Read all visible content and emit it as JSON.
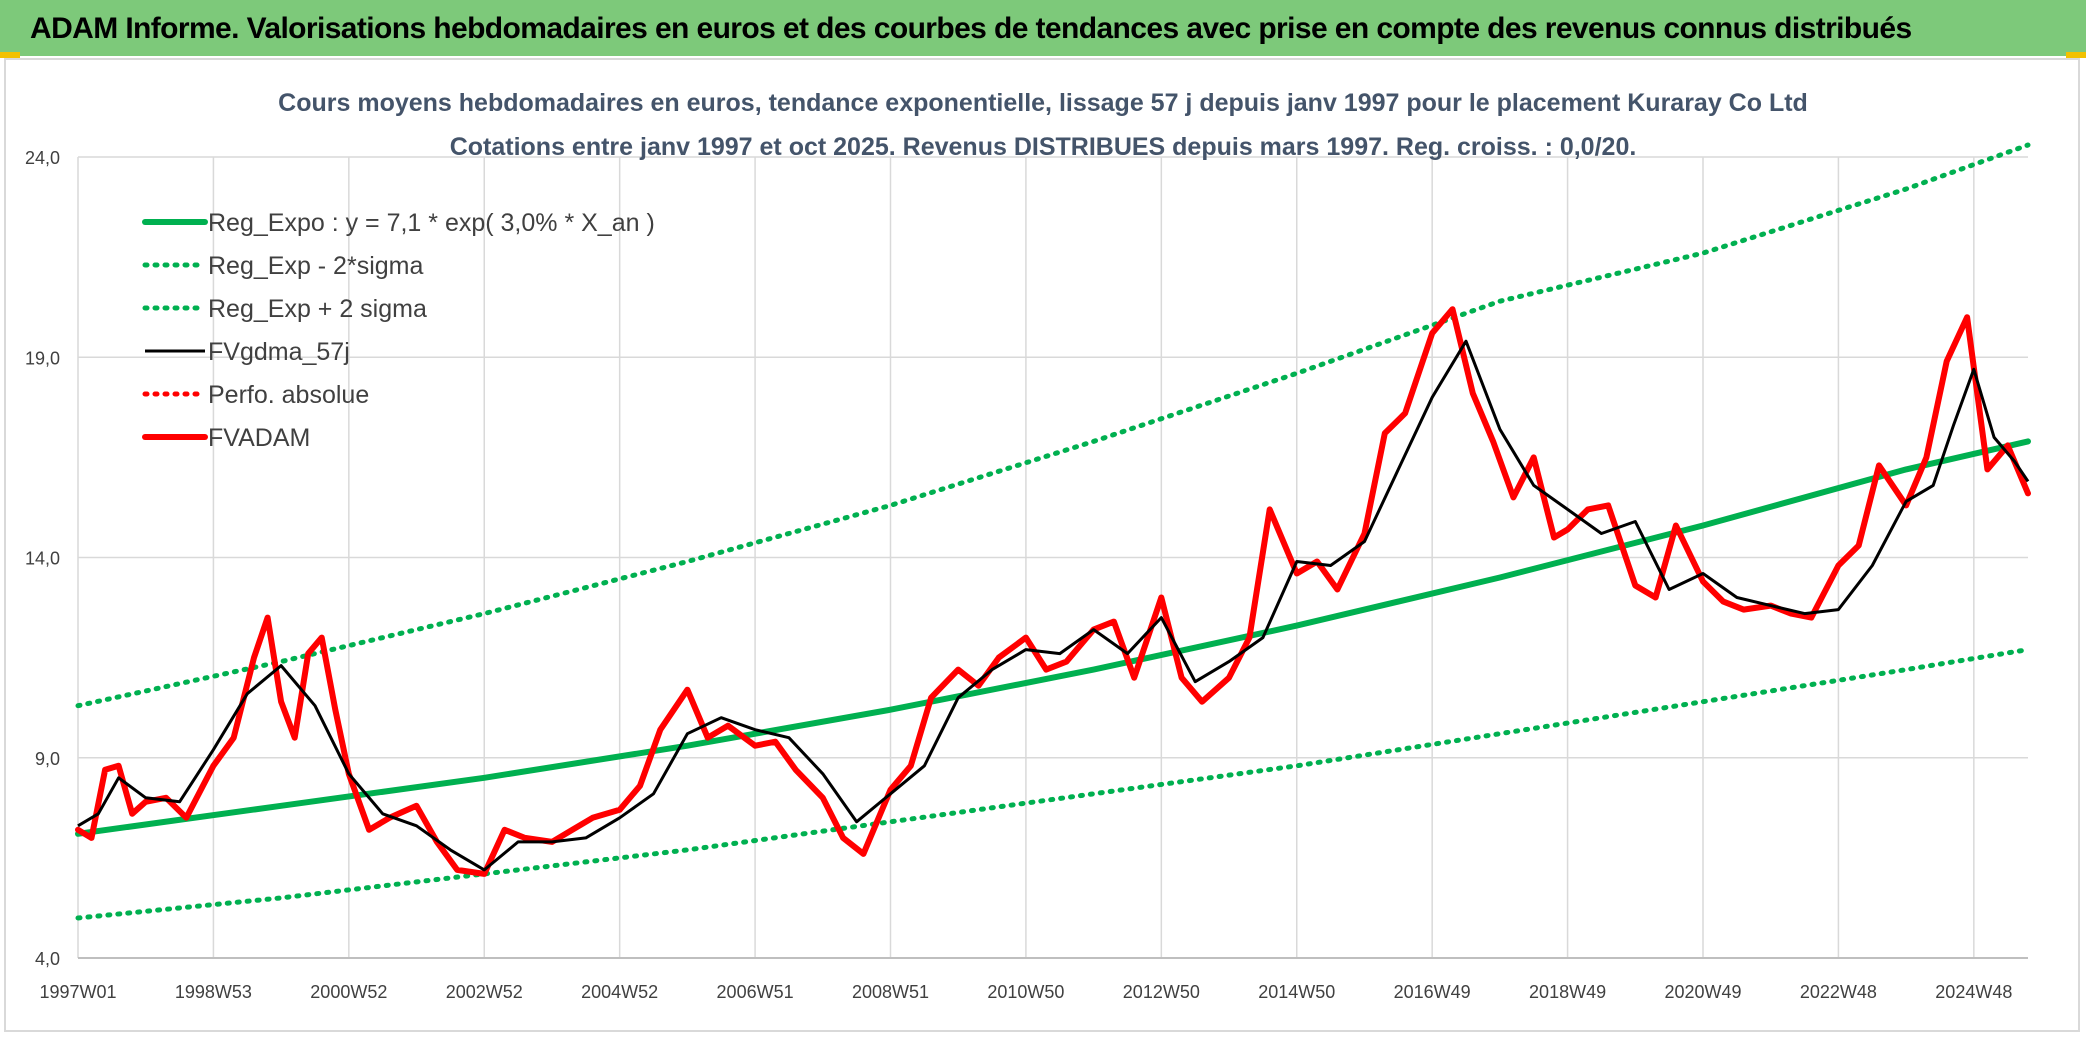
{
  "header": {
    "title": "ADAM Informe. Valorisations hebdomadaires en euros et des courbes de tendances avec prise en compte des revenus connus distribués"
  },
  "colors": {
    "banner": "#7dc97a",
    "trend": "#00b050",
    "fvgdma": "#000000",
    "fvadam": "#ff0000",
    "perfo": "#ff0000",
    "grid": "#d9d9d9"
  },
  "chart_data": {
    "type": "line",
    "title_lines": [
      "Cours moyens hebdomadaires en euros, tendance exponentielle, lissage 57 j depuis janv 1997 pour le placement Kuraray Co Ltd",
      "Cotations entre janv 1997 et oct 2025. Revenus DISTRIBUES depuis mars 1997. Reg. croiss. : 0,0/20."
    ],
    "x_range": [
      1997.0,
      2025.8
    ],
    "ylim": [
      4.0,
      24.0
    ],
    "y_ticks": [
      "4,0",
      "9,0",
      "14,0",
      "19,0",
      "24,0"
    ],
    "y_tick_values": [
      4,
      9,
      14,
      19,
      24
    ],
    "x_ticks": [
      "1997W01",
      "1998W53",
      "2000W52",
      "2002W52",
      "2004W52",
      "2006W51",
      "2008W51",
      "2010W50",
      "2012W50",
      "2014W50",
      "2016W49",
      "2018W49",
      "2020W49",
      "2022W48",
      "2024W48"
    ],
    "x_tick_values": [
      1997.0,
      1999.0,
      2001.0,
      2003.0,
      2005.0,
      2007.0,
      2009.0,
      2011.0,
      2013.0,
      2015.0,
      2017.0,
      2019.0,
      2021.0,
      2023.0,
      2025.0
    ],
    "grid": true,
    "legend_position": "top-left",
    "series": [
      {
        "name": "Reg_Expo : y = 7,1 * exp( 3,0% *  X_an )",
        "style": "solid-thick",
        "color": "#00b050",
        "x": [
          1997.0,
          2000.0,
          2003.0,
          2006.0,
          2009.0,
          2012.0,
          2015.0,
          2018.0,
          2021.0,
          2024.0,
          2025.8
        ],
        "y": [
          7.1,
          7.8,
          8.5,
          9.3,
          10.2,
          11.2,
          12.3,
          13.5,
          14.8,
          16.2,
          16.9
        ]
      },
      {
        "name": "Reg_Exp - 2*sigma",
        "style": "dotted",
        "color": "#00b050",
        "x": [
          1997.0,
          2000.0,
          2003.0,
          2006.0,
          2009.0,
          2012.0,
          2015.0,
          2018.0,
          2021.0,
          2024.0,
          2025.8
        ],
        "y": [
          5.0,
          5.5,
          6.1,
          6.7,
          7.4,
          8.1,
          8.8,
          9.6,
          10.4,
          11.2,
          11.7
        ]
      },
      {
        "name": "Reg_Exp + 2 sigma",
        "style": "dotted",
        "color": "#00b050",
        "x": [
          1997.0,
          2000.0,
          2003.0,
          2006.0,
          2009.0,
          2012.0,
          2015.0,
          2018.0,
          2021.0,
          2024.0,
          2025.8
        ],
        "y": [
          10.3,
          11.4,
          12.6,
          13.9,
          15.3,
          16.9,
          18.6,
          20.4,
          21.6,
          23.2,
          24.3
        ]
      },
      {
        "name": "FVgdma_57j",
        "style": "solid",
        "color": "#000000",
        "x": [
          1997.0,
          1997.3,
          1997.6,
          1998.0,
          1998.5,
          1999.0,
          1999.5,
          2000.0,
          2000.5,
          2001.0,
          2001.5,
          2002.0,
          2002.5,
          2003.0,
          2003.5,
          2004.0,
          2004.5,
          2005.0,
          2005.5,
          2006.0,
          2006.5,
          2007.0,
          2007.5,
          2008.0,
          2008.5,
          2009.0,
          2009.5,
          2010.0,
          2010.5,
          2011.0,
          2011.5,
          2012.0,
          2012.5,
          2013.0,
          2013.5,
          2014.0,
          2014.5,
          2015.0,
          2015.5,
          2016.0,
          2016.5,
          2017.0,
          2017.5,
          2018.0,
          2018.5,
          2019.0,
          2019.5,
          2020.0,
          2020.5,
          2021.0,
          2021.5,
          2022.0,
          2022.5,
          2023.0,
          2023.5,
          2024.0,
          2024.4,
          2024.7,
          2025.0,
          2025.3,
          2025.6,
          2025.8
        ],
        "y": [
          7.3,
          7.6,
          8.5,
          8.0,
          7.9,
          9.2,
          10.6,
          11.3,
          10.3,
          8.6,
          7.6,
          7.3,
          6.7,
          6.2,
          6.9,
          6.9,
          7.0,
          7.5,
          8.1,
          9.6,
          10.0,
          9.7,
          9.5,
          8.6,
          7.4,
          8.1,
          8.8,
          10.5,
          11.2,
          11.7,
          11.6,
          12.2,
          11.6,
          12.5,
          10.9,
          11.4,
          12.0,
          13.9,
          13.8,
          14.4,
          16.2,
          18.0,
          19.4,
          17.2,
          15.8,
          15.2,
          14.6,
          14.9,
          13.2,
          13.6,
          13.0,
          12.8,
          12.6,
          12.7,
          13.8,
          15.4,
          15.8,
          17.3,
          18.7,
          17.0,
          16.4,
          15.9
        ]
      },
      {
        "name": "Perfo. absolue",
        "style": "dotted",
        "color": "#ff0000",
        "x": [],
        "y": []
      },
      {
        "name": "FVADAM",
        "style": "solid-thick",
        "color": "#ff0000",
        "x": [
          1997.0,
          1997.2,
          1997.4,
          1997.6,
          1997.8,
          1998.0,
          1998.3,
          1998.6,
          1999.0,
          1999.3,
          1999.6,
          1999.8,
          2000.0,
          2000.2,
          2000.4,
          2000.6,
          2000.8,
          2001.0,
          2001.3,
          2001.6,
          2002.0,
          2002.3,
          2002.6,
          2003.0,
          2003.3,
          2003.6,
          2004.0,
          2004.3,
          2004.6,
          2005.0,
          2005.3,
          2005.6,
          2006.0,
          2006.3,
          2006.6,
          2007.0,
          2007.3,
          2007.6,
          2008.0,
          2008.3,
          2008.6,
          2009.0,
          2009.3,
          2009.6,
          2010.0,
          2010.3,
          2010.6,
          2011.0,
          2011.3,
          2011.6,
          2012.0,
          2012.3,
          2012.6,
          2013.0,
          2013.3,
          2013.6,
          2014.0,
          2014.3,
          2014.6,
          2015.0,
          2015.3,
          2015.6,
          2016.0,
          2016.3,
          2016.6,
          2017.0,
          2017.3,
          2017.6,
          2017.9,
          2018.2,
          2018.5,
          2018.8,
          2019.0,
          2019.3,
          2019.6,
          2020.0,
          2020.3,
          2020.6,
          2021.0,
          2021.3,
          2021.6,
          2022.0,
          2022.3,
          2022.6,
          2023.0,
          2023.3,
          2023.6,
          2024.0,
          2024.3,
          2024.6,
          2024.9,
          2025.2,
          2025.5,
          2025.8
        ],
        "y": [
          7.2,
          7.0,
          8.7,
          8.8,
          7.6,
          7.9,
          8.0,
          7.5,
          8.8,
          9.5,
          11.5,
          12.5,
          10.4,
          9.5,
          11.6,
          12.0,
          10.2,
          8.6,
          7.2,
          7.5,
          7.8,
          6.9,
          6.2,
          6.1,
          7.2,
          7.0,
          6.9,
          7.2,
          7.5,
          7.7,
          8.3,
          9.7,
          10.7,
          9.5,
          9.8,
          9.3,
          9.4,
          8.7,
          8.0,
          7.0,
          6.6,
          8.2,
          8.8,
          10.5,
          11.2,
          10.8,
          11.5,
          12.0,
          11.2,
          11.4,
          12.2,
          12.4,
          11.0,
          13.0,
          11.0,
          10.4,
          11.0,
          12.0,
          15.2,
          13.6,
          13.9,
          13.2,
          14.6,
          17.1,
          17.6,
          19.6,
          20.2,
          18.1,
          16.9,
          15.5,
          16.5,
          14.5,
          14.7,
          15.2,
          15.3,
          13.3,
          13.0,
          14.8,
          13.4,
          12.9,
          12.7,
          12.8,
          12.6,
          12.5,
          13.8,
          14.3,
          16.3,
          15.3,
          16.5,
          18.9,
          20.0,
          16.2,
          16.8,
          15.6
        ]
      }
    ]
  }
}
